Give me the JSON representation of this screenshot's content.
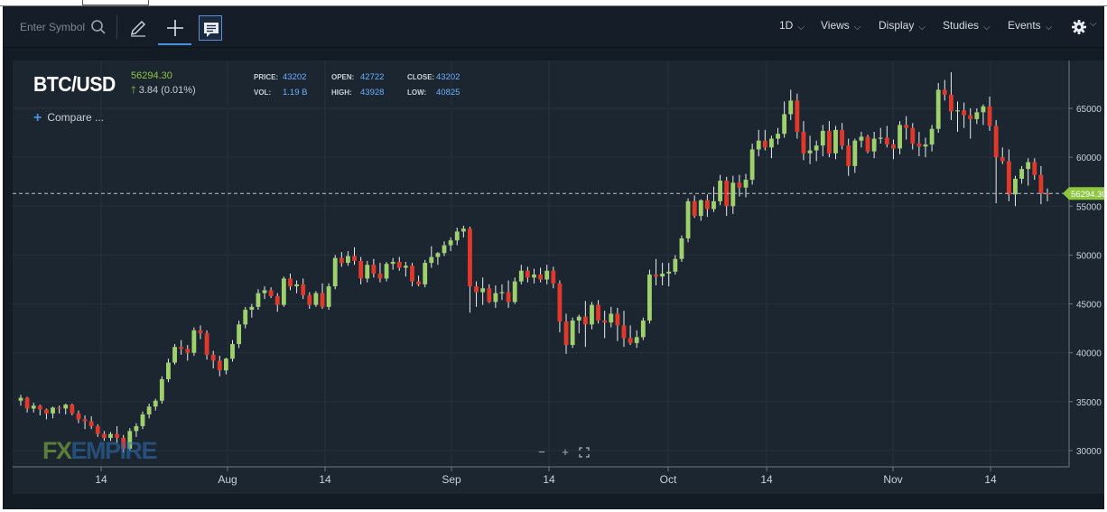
{
  "toolbar": {
    "symbol_placeholder": "Enter Symbol",
    "menus": {
      "interval": "1D",
      "views": "Views",
      "display": "Display",
      "studies": "Studies",
      "events": "Events"
    }
  },
  "header": {
    "symbol": "BTC/USD",
    "last": "56294.30",
    "change": "3.84 (0.01%)",
    "price_label": "PRICE:",
    "price": "43202",
    "open_label": "OPEN:",
    "open": "42722",
    "close_label": "CLOSE:",
    "close": "43202",
    "vol_label": "VOL:",
    "vol": "1.19 B",
    "high_label": "HIGH:",
    "high": "43928",
    "low_label": "LOW:",
    "low": "40825",
    "compare": "Compare ..."
  },
  "logo": {
    "fx": "FX",
    "rest": "EMPIRE"
  },
  "colors": {
    "up": "#9ed06b",
    "down": "#e0392b",
    "background": "#1c2631",
    "last_price": "#8dc63f"
  },
  "chart_data": {
    "type": "candlestick",
    "interval": "1D",
    "last_price": 56294.3,
    "x_ticks": [
      "14",
      "Aug",
      "14",
      "Sep",
      "14",
      "Oct",
      "14",
      "Nov",
      "14"
    ],
    "ylim": [
      28500,
      69000
    ],
    "y_ticks": [
      30000,
      35000,
      40000,
      45000,
      50000,
      55000,
      60000,
      65000
    ],
    "grid": true,
    "candles": [
      [
        35100,
        35700,
        34600,
        35400
      ],
      [
        35400,
        35500,
        33900,
        34300
      ],
      [
        34300,
        34900,
        33900,
        34600
      ],
      [
        34600,
        34700,
        33600,
        34200
      ],
      [
        34200,
        34300,
        33200,
        33800
      ],
      [
        33800,
        34500,
        33300,
        34400
      ],
      [
        34400,
        34600,
        33800,
        34300
      ],
      [
        34300,
        34800,
        33700,
        34700
      ],
      [
        34700,
        34800,
        33600,
        33800
      ],
      [
        33800,
        34100,
        32800,
        33200
      ],
      [
        33200,
        33600,
        32200,
        33000
      ],
      [
        33000,
        33500,
        32200,
        32500
      ],
      [
        32500,
        32700,
        31400,
        31700
      ],
      [
        31700,
        32000,
        31000,
        31300
      ],
      [
        31300,
        31900,
        31000,
        31700
      ],
      [
        31700,
        32500,
        30800,
        31300
      ],
      [
        31300,
        31600,
        29800,
        30200
      ],
      [
        30200,
        32300,
        30000,
        32000
      ],
      [
        32000,
        32800,
        31400,
        32500
      ],
      [
        32500,
        34000,
        32200,
        33700
      ],
      [
        33700,
        34800,
        33300,
        34500
      ],
      [
        34500,
        35300,
        34100,
        35100
      ],
      [
        35100,
        37600,
        34800,
        37300
      ],
      [
        37300,
        39400,
        37000,
        39000
      ],
      [
        39000,
        40900,
        38800,
        40600
      ],
      [
        40600,
        41300,
        39800,
        40400
      ],
      [
        40400,
        40800,
        39200,
        40000
      ],
      [
        40000,
        42600,
        39700,
        42300
      ],
      [
        42300,
        42800,
        41400,
        42000
      ],
      [
        42000,
        42300,
        39300,
        39800
      ],
      [
        39800,
        40200,
        38400,
        39200
      ],
      [
        39200,
        39700,
        37600,
        38200
      ],
      [
        38200,
        39500,
        37800,
        39400
      ],
      [
        39400,
        41300,
        39100,
        40900
      ],
      [
        40900,
        43300,
        40500,
        42900
      ],
      [
        42900,
        44700,
        42500,
        44400
      ],
      [
        44400,
        45000,
        43600,
        44700
      ],
      [
        44700,
        46500,
        44400,
        46100
      ],
      [
        46100,
        46800,
        45500,
        46400
      ],
      [
        46400,
        46700,
        45600,
        45800
      ],
      [
        45800,
        46100,
        44200,
        44900
      ],
      [
        44900,
        47800,
        44700,
        47600
      ],
      [
        47600,
        48100,
        46400,
        46800
      ],
      [
        46800,
        47400,
        46100,
        47000
      ],
      [
        47000,
        47600,
        45500,
        45900
      ],
      [
        45900,
        46200,
        44500,
        44900
      ],
      [
        44900,
        46300,
        44700,
        46100
      ],
      [
        46100,
        47100,
        44500,
        44700
      ],
      [
        44700,
        47100,
        44400,
        46800
      ],
      [
        46800,
        50000,
        46500,
        49700
      ],
      [
        49700,
        50300,
        48800,
        49200
      ],
      [
        49200,
        50400,
        48900,
        49900
      ],
      [
        49900,
        50800,
        49000,
        49400
      ],
      [
        49400,
        49800,
        47000,
        47600
      ],
      [
        47600,
        49400,
        47200,
        49000
      ],
      [
        49000,
        49600,
        47700,
        48100
      ],
      [
        48100,
        49200,
        47200,
        47600
      ],
      [
        47600,
        49300,
        47300,
        49100
      ],
      [
        49100,
        49700,
        48500,
        49300
      ],
      [
        49300,
        49800,
        48400,
        48700
      ],
      [
        48700,
        49300,
        47800,
        48900
      ],
      [
        48900,
        49200,
        46800,
        47300
      ],
      [
        47300,
        47900,
        46800,
        47000
      ],
      [
        47000,
        49500,
        46700,
        49200
      ],
      [
        49200,
        50900,
        48700,
        49800
      ],
      [
        49800,
        50300,
        49000,
        50200
      ],
      [
        50200,
        51400,
        49900,
        51000
      ],
      [
        51000,
        51800,
        50400,
        51500
      ],
      [
        51500,
        52800,
        51000,
        52400
      ],
      [
        52400,
        53000,
        51800,
        52700
      ],
      [
        52700,
        52900,
        44100,
        46800
      ],
      [
        46800,
        47300,
        44700,
        46200
      ],
      [
        46200,
        47700,
        44900,
        46600
      ],
      [
        46600,
        47000,
        45100,
        45200
      ],
      [
        45200,
        46900,
        44600,
        46100
      ],
      [
        46100,
        47000,
        45400,
        46200
      ],
      [
        46200,
        47400,
        44600,
        45200
      ],
      [
        45200,
        47700,
        45000,
        47300
      ],
      [
        47300,
        49000,
        47000,
        48400
      ],
      [
        48400,
        48800,
        47200,
        47700
      ],
      [
        47700,
        48600,
        47100,
        48000
      ],
      [
        48000,
        48700,
        47200,
        47500
      ],
      [
        47500,
        49000,
        47000,
        48400
      ],
      [
        48400,
        48800,
        46600,
        47100
      ],
      [
        47100,
        47400,
        42100,
        43200
      ],
      [
        43200,
        44000,
        39900,
        40800
      ],
      [
        40800,
        43600,
        40500,
        43300
      ],
      [
        43300,
        43900,
        42000,
        43700
      ],
      [
        43700,
        45300,
        40600,
        42900
      ],
      [
        42900,
        45200,
        42400,
        44900
      ],
      [
        44900,
        45400,
        43000,
        43300
      ],
      [
        43300,
        44300,
        41500,
        43100
      ],
      [
        43100,
        44700,
        42600,
        44000
      ],
      [
        44000,
        44600,
        41200,
        42800
      ],
      [
        42800,
        44300,
        40600,
        41500
      ],
      [
        41500,
        42800,
        40800,
        41000
      ],
      [
        41000,
        42300,
        40500,
        41600
      ],
      [
        41600,
        43600,
        41300,
        43300
      ],
      [
        43300,
        48500,
        43000,
        48000
      ],
      [
        48000,
        49600,
        46900,
        47800
      ],
      [
        47800,
        49200,
        46900,
        48100
      ],
      [
        48100,
        49200,
        46800,
        48300
      ],
      [
        48300,
        50000,
        48000,
        49600
      ],
      [
        49600,
        52000,
        49300,
        51700
      ],
      [
        51700,
        55800,
        51300,
        55500
      ],
      [
        55500,
        56100,
        53800,
        54000
      ],
      [
        54000,
        55700,
        53500,
        55600
      ],
      [
        55600,
        56200,
        53900,
        54700
      ],
      [
        54700,
        57000,
        54400,
        55500
      ],
      [
        55500,
        58200,
        55100,
        57600
      ],
      [
        57600,
        58000,
        54000,
        55000
      ],
      [
        55000,
        58100,
        54200,
        57400
      ],
      [
        57400,
        58200,
        56000,
        56900
      ],
      [
        56900,
        58300,
        55900,
        57700
      ],
      [
        57700,
        61400,
        57200,
        60800
      ],
      [
        60800,
        62800,
        60100,
        61700
      ],
      [
        61700,
        62800,
        60700,
        61000
      ],
      [
        61000,
        62200,
        59900,
        61900
      ],
      [
        61900,
        63000,
        61300,
        62400
      ],
      [
        62400,
        65700,
        62000,
        64400
      ],
      [
        64400,
        66900,
        63800,
        65800
      ],
      [
        65800,
        66500,
        61900,
        62600
      ],
      [
        62600,
        63700,
        59700,
        60400
      ],
      [
        60400,
        62200,
        59300,
        60700
      ],
      [
        60700,
        61700,
        59600,
        61200
      ],
      [
        61200,
        63300,
        60100,
        62700
      ],
      [
        62700,
        63700,
        60000,
        60400
      ],
      [
        60400,
        63200,
        59800,
        62800
      ],
      [
        62800,
        63500,
        60800,
        61200
      ],
      [
        61200,
        61900,
        58100,
        59100
      ],
      [
        59100,
        61900,
        58400,
        61700
      ],
      [
        61700,
        62600,
        61000,
        62100
      ],
      [
        62100,
        62300,
        60400,
        60600
      ],
      [
        60600,
        62600,
        59900,
        61900
      ],
      [
        61900,
        63000,
        61400,
        62000
      ],
      [
        62000,
        63200,
        61000,
        61300
      ],
      [
        61300,
        61800,
        59800,
        60900
      ],
      [
        60900,
        63700,
        60300,
        63300
      ],
      [
        63300,
        64200,
        61800,
        63000
      ],
      [
        63000,
        63500,
        60800,
        61400
      ],
      [
        61400,
        62600,
        60100,
        61100
      ],
      [
        61100,
        62000,
        60000,
        61300
      ],
      [
        61300,
        63300,
        60600,
        62900
      ],
      [
        62900,
        67600,
        62500,
        66900
      ],
      [
        66900,
        67900,
        65800,
        66400
      ],
      [
        66400,
        68700,
        63800,
        64700
      ],
      [
        64700,
        65700,
        62600,
        64800
      ],
      [
        64800,
        65600,
        63000,
        64300
      ],
      [
        64300,
        65000,
        61900,
        63900
      ],
      [
        63900,
        65000,
        63400,
        64600
      ],
      [
        64600,
        65400,
        63300,
        65200
      ],
      [
        65200,
        66200,
        62700,
        63200
      ],
      [
        63200,
        63800,
        55300,
        60000
      ],
      [
        60000,
        61000,
        59300,
        59600
      ],
      [
        59600,
        60800,
        55500,
        56200
      ],
      [
        56200,
        58100,
        55000,
        57800
      ],
      [
        57800,
        59100,
        57300,
        58800
      ],
      [
        58800,
        59900,
        57100,
        59500
      ],
      [
        59500,
        59900,
        57700,
        58200
      ],
      [
        58200,
        59100,
        55200,
        56300
      ],
      [
        56300,
        56800,
        55500,
        56294.3
      ]
    ]
  }
}
